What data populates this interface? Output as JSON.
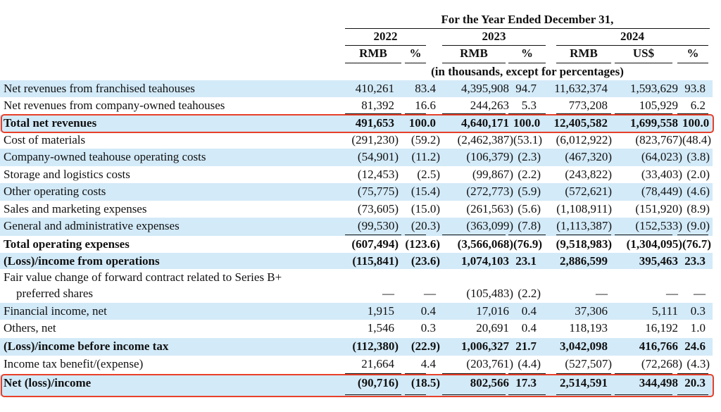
{
  "table": {
    "header": {
      "period": "For the Year Ended December 31,",
      "years": [
        "2022",
        "2023",
        "2024"
      ],
      "columns": [
        "RMB",
        "%",
        "RMB",
        "%",
        "RMB",
        "US$",
        "%"
      ],
      "units": "(in thousands, except for percentages)"
    },
    "rows": [
      {
        "label": [
          "Net revenues from franchised teahouses"
        ],
        "values": [
          "410,261",
          "83.4",
          "4,395,908",
          "94.7",
          "11,632,374",
          "1,593,629",
          "93.8"
        ]
      },
      {
        "label": [
          "Net revenues from company-owned teahouses"
        ],
        "values": [
          "81,392",
          "16.6",
          "244,263",
          "5.3",
          "773,208",
          "105,929",
          "6.2"
        ]
      },
      {
        "label": [
          "Total net revenues"
        ],
        "values": [
          "491,653",
          "100.0",
          "4,640,171",
          "100.0",
          "12,405,582",
          "1,699,558",
          "100.0"
        ]
      },
      {
        "label": [
          "Cost of materials"
        ],
        "values": [
          "(291,230)",
          "(59.2)",
          "(2,462,387)",
          "(53.1)",
          "(6,012,922)",
          "(823,767)",
          "(48.4)"
        ]
      },
      {
        "label": [
          "Company-owned teahouse operating costs"
        ],
        "values": [
          "(54,901)",
          "(11.2)",
          "(106,379)",
          "(2.3)",
          "(467,320)",
          "(64,023)",
          "(3.8)"
        ]
      },
      {
        "label": [
          "Storage and logistics costs"
        ],
        "values": [
          "(12,453)",
          "(2.5)",
          "(99,867)",
          "(2.2)",
          "(243,822)",
          "(33,403)",
          "(2.0)"
        ]
      },
      {
        "label": [
          "Other operating costs"
        ],
        "values": [
          "(75,775)",
          "(15.4)",
          "(272,773)",
          "(5.9)",
          "(572,621)",
          "(78,449)",
          "(4.6)"
        ]
      },
      {
        "label": [
          "Sales and marketing expenses"
        ],
        "values": [
          "(73,605)",
          "(15.0)",
          "(261,563)",
          "(5.6)",
          "(1,108,911)",
          "(151,920)",
          "(8.9)"
        ]
      },
      {
        "label": [
          "General and administrative expenses"
        ],
        "values": [
          "(99,530)",
          "(20.3)",
          "(363,099)",
          "(7.8)",
          "(1,113,387)",
          "(152,533)",
          "(9.0)"
        ]
      },
      {
        "label": [
          "Total operating expenses"
        ],
        "values": [
          "(607,494)",
          "(123.6)",
          "(3,566,068)",
          "(76.9)",
          "(9,518,983)",
          "(1,304,095)",
          "(76.7)"
        ]
      },
      {
        "label": [
          "(Loss)/income from operations"
        ],
        "values": [
          "(115,841)",
          "(23.6)",
          "1,074,103",
          "23.1",
          "2,886,599",
          "395,463",
          "23.3"
        ]
      },
      {
        "label": [
          "Fair value change of forward contract related to Series B+",
          "preferred shares"
        ],
        "values": [
          "—",
          "—",
          "(105,483)",
          "(2.2)",
          "—",
          "—",
          "—"
        ]
      },
      {
        "label": [
          "Financial income, net"
        ],
        "values": [
          "1,915",
          "0.4",
          "17,016",
          "0.4",
          "37,306",
          "5,111",
          "0.3"
        ]
      },
      {
        "label": [
          "Others, net"
        ],
        "values": [
          "1,546",
          "0.3",
          "20,691",
          "0.4",
          "118,193",
          "16,192",
          "1.0"
        ]
      },
      {
        "label": [
          "(Loss)/income before income tax"
        ],
        "values": [
          "(112,380)",
          "(22.9)",
          "1,006,327",
          "21.7",
          "3,042,098",
          "416,766",
          "24.6"
        ]
      },
      {
        "label": [
          "Income tax benefit/(expense)"
        ],
        "values": [
          "21,664",
          "4.4",
          "(203,761)",
          "(4.4)",
          "(527,507)",
          "(72,268)",
          "(4.3)"
        ]
      },
      {
        "label": [
          "Net (loss)/income"
        ],
        "values": [
          "(90,716)",
          "(18.5)",
          "802,566",
          "17.3",
          "2,514,591",
          "344,498",
          "20.3"
        ]
      }
    ]
  }
}
